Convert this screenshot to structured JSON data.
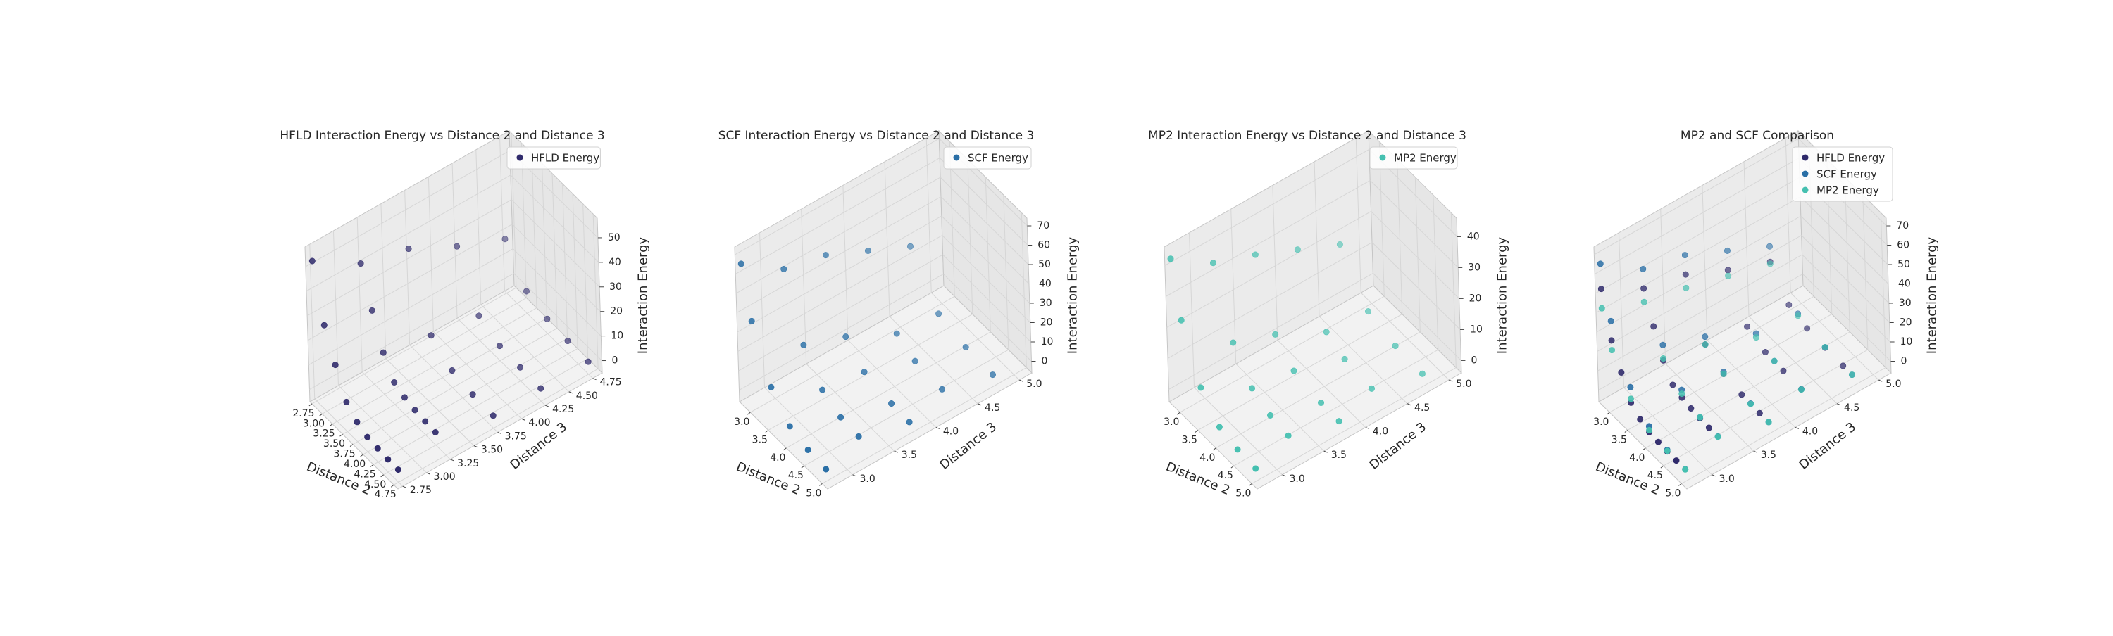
{
  "figure": {
    "background": "#ffffff",
    "pane_colors": [
      "#f2f2f2",
      "#ebebeb",
      "#e6e6e6"
    ],
    "grid_color": "#d6d6d6",
    "edge_color": "#c6c6c6",
    "series_colors": {
      "HFLD Energy": "#2f2a6b",
      "SCF Energy": "#2a6fa6",
      "MP2 Energy": "#45c0b0"
    }
  },
  "chart_data": [
    {
      "type": "scatter",
      "subtype": "3d",
      "title": "HFLD Interaction Energy vs Distance 2 and Distance 3",
      "xlabel": "Distance 2",
      "ylabel": "Distance 3",
      "zlabel": "Interaction Energy",
      "xlim": [
        2.7,
        4.85
      ],
      "ylim": [
        2.7,
        4.85
      ],
      "zlim": [
        -5,
        58
      ],
      "xticks": [
        "2.75",
        "3.00",
        "3.25",
        "3.50",
        "3.75",
        "4.00",
        "4.25",
        "4.50",
        "4.75"
      ],
      "yticks": [
        "2.75",
        "3.00",
        "3.25",
        "3.50",
        "3.75",
        "4.00",
        "4.25",
        "4.50",
        "4.75"
      ],
      "zticks": [
        "0",
        "10",
        "20",
        "30",
        "40",
        "50"
      ],
      "legend": "top-right",
      "grid": true,
      "series": [
        {
          "name": "HFLD Energy",
          "color": "#2f2a6b",
          "points": [
            [
              2.75,
              2.75,
              52
            ],
            [
              3.0,
              2.75,
              30
            ],
            [
              3.25,
              2.75,
              18
            ],
            [
              3.5,
              2.75,
              7
            ],
            [
              3.75,
              2.75,
              3
            ],
            [
              4.0,
              2.75,
              1
            ],
            [
              4.25,
              2.75,
              0.5
            ],
            [
              4.5,
              2.75,
              0.2
            ],
            [
              4.75,
              2.75,
              0.1
            ],
            [
              2.75,
              3.25,
              40
            ],
            [
              3.0,
              3.25,
              25
            ],
            [
              3.25,
              3.25,
              12
            ],
            [
              3.5,
              3.25,
              4
            ],
            [
              3.75,
              3.25,
              2
            ],
            [
              4.0,
              3.25,
              1
            ],
            [
              4.25,
              3.25,
              0.5
            ],
            [
              4.5,
              3.25,
              0.2
            ],
            [
              2.75,
              3.75,
              35
            ],
            [
              3.25,
              3.75,
              8
            ],
            [
              3.75,
              3.75,
              2
            ],
            [
              4.25,
              3.75,
              0.5
            ],
            [
              4.75,
              3.75,
              0.1
            ],
            [
              2.75,
              4.25,
              25
            ],
            [
              3.25,
              4.25,
              5
            ],
            [
              3.75,
              4.25,
              1
            ],
            [
              4.25,
              4.25,
              0.5
            ],
            [
              4.75,
              4.25,
              0.2
            ],
            [
              2.75,
              4.75,
              17
            ],
            [
              3.25,
              4.75,
              4
            ],
            [
              3.75,
              4.75,
              1
            ],
            [
              4.25,
              4.75,
              0.3
            ],
            [
              4.75,
              4.75,
              0.1
            ]
          ]
        }
      ]
    },
    {
      "type": "scatter",
      "subtype": "3d",
      "title": "SCF Interaction Energy vs Distance 2 and Distance 3",
      "xlabel": "Distance 2",
      "ylabel": "Distance 3",
      "zlabel": "Interaction Energy",
      "xlim": [
        2.7,
        5.15
      ],
      "ylim": [
        2.7,
        5.15
      ],
      "zlim": [
        -6,
        74
      ],
      "xticks": [
        "3.0",
        "3.5",
        "4.0",
        "4.5",
        "5.0"
      ],
      "yticks": [
        "3.0",
        "3.5",
        "4.0",
        "4.5",
        "5.0"
      ],
      "zticks": [
        "0",
        "10",
        "20",
        "30",
        "40",
        "50",
        "60",
        "70"
      ],
      "legend": "top-right",
      "grid": true,
      "series": [
        {
          "name": "SCF Energy",
          "color": "#2a6fa6",
          "points": [
            [
              2.75,
              2.75,
              65
            ],
            [
              3.0,
              2.75,
              40
            ],
            [
              3.5,
              2.75,
              15
            ],
            [
              4.0,
              2.75,
              4
            ],
            [
              4.5,
              2.75,
              1
            ],
            [
              5.0,
              2.75,
              0.2
            ],
            [
              2.75,
              3.25,
              50
            ],
            [
              3.25,
              3.25,
              20
            ],
            [
              3.75,
              3.25,
              6
            ],
            [
              4.25,
              3.25,
              1
            ],
            [
              4.75,
              3.25,
              0.3
            ],
            [
              2.75,
              3.75,
              45
            ],
            [
              3.25,
              3.75,
              12
            ],
            [
              3.75,
              3.75,
              3
            ],
            [
              4.5,
              3.75,
              0.5
            ],
            [
              5.0,
              3.75,
              0.1
            ],
            [
              2.75,
              4.25,
              35
            ],
            [
              3.5,
              4.25,
              6
            ],
            [
              4.0,
              4.25,
              1
            ],
            [
              4.75,
              4.25,
              0.2
            ],
            [
              2.75,
              4.75,
              25
            ],
            [
              3.5,
              4.75,
              4
            ],
            [
              4.25,
              4.75,
              0.5
            ],
            [
              5.0,
              4.75,
              0.1
            ]
          ]
        }
      ]
    },
    {
      "type": "scatter",
      "subtype": "3d",
      "title": "MP2 Interaction Energy vs Distance 2 and Distance 3",
      "xlabel": "Distance 2",
      "ylabel": "Distance 3",
      "zlabel": "Interaction Energy",
      "xlim": [
        2.7,
        5.15
      ],
      "ylim": [
        2.7,
        5.15
      ],
      "zlim": [
        -4,
        46
      ],
      "xticks": [
        "3.0",
        "3.5",
        "4.0",
        "4.5",
        "5.0"
      ],
      "yticks": [
        "3.0",
        "3.5",
        "4.0",
        "4.5",
        "5.0"
      ],
      "zticks": [
        "0",
        "10",
        "20",
        "30",
        "40"
      ],
      "legend": "top-right",
      "grid": true,
      "series": [
        {
          "name": "MP2 Energy",
          "color": "#45c0b0",
          "points": [
            [
              2.75,
              2.75,
              42
            ],
            [
              3.0,
              2.75,
              25
            ],
            [
              3.5,
              2.75,
              9
            ],
            [
              4.0,
              2.75,
              2
            ],
            [
              4.5,
              2.75,
              0.5
            ],
            [
              5.0,
              2.75,
              0.1
            ],
            [
              2.75,
              3.25,
              33
            ],
            [
              3.25,
              3.25,
              13
            ],
            [
              3.75,
              3.25,
              4
            ],
            [
              4.25,
              3.25,
              1
            ],
            [
              4.75,
              3.25,
              0.2
            ],
            [
              2.75,
              3.75,
              28
            ],
            [
              3.25,
              3.75,
              8
            ],
            [
              3.75,
              3.75,
              2
            ],
            [
              4.5,
              3.75,
              0.3
            ],
            [
              5.0,
              3.75,
              0.1
            ],
            [
              2.75,
              4.25,
              22
            ],
            [
              3.5,
              4.25,
              4
            ],
            [
              4.0,
              4.25,
              1
            ],
            [
              4.75,
              4.25,
              0.1
            ],
            [
              2.75,
              4.75,
              16
            ],
            [
              3.5,
              4.75,
              3
            ],
            [
              4.25,
              4.75,
              0.5
            ],
            [
              5.0,
              4.75,
              0.1
            ]
          ]
        }
      ]
    },
    {
      "type": "scatter",
      "subtype": "3d",
      "title": "MP2 and SCF Comparison",
      "xlabel": "Distance 2",
      "ylabel": "Distance 3",
      "zlabel": "Interaction Energy",
      "xlim": [
        2.7,
        5.15
      ],
      "ylim": [
        2.7,
        5.15
      ],
      "zlim": [
        -6,
        74
      ],
      "xticks": [
        "3.0",
        "3.5",
        "4.0",
        "4.5",
        "5.0"
      ],
      "yticks": [
        "3.0",
        "3.5",
        "4.0",
        "4.5",
        "5.0"
      ],
      "zticks": [
        "0",
        "10",
        "20",
        "30",
        "40",
        "50",
        "60",
        "70"
      ],
      "legend": "top-right",
      "grid": true,
      "series": [
        {
          "name": "HFLD Energy",
          "color": "#2f2a6b",
          "points": [
            [
              2.75,
              2.75,
              52
            ],
            [
              3.0,
              2.75,
              30
            ],
            [
              3.25,
              2.75,
              18
            ],
            [
              3.5,
              2.75,
              7
            ],
            [
              3.75,
              2.75,
              3
            ],
            [
              4.0,
              2.75,
              1
            ],
            [
              4.25,
              2.75,
              0.5
            ],
            [
              4.5,
              2.75,
              0.2
            ],
            [
              4.75,
              2.75,
              0.1
            ],
            [
              2.75,
              3.25,
              40
            ],
            [
              3.0,
              3.25,
              25
            ],
            [
              3.25,
              3.25,
              12
            ],
            [
              3.5,
              3.25,
              4
            ],
            [
              3.75,
              3.25,
              2
            ],
            [
              4.0,
              3.25,
              1
            ],
            [
              4.25,
              3.25,
              0.5
            ],
            [
              4.5,
              3.25,
              0.2
            ],
            [
              2.75,
              3.75,
              35
            ],
            [
              3.25,
              3.75,
              8
            ],
            [
              3.75,
              3.75,
              2
            ],
            [
              4.25,
              3.75,
              0.5
            ],
            [
              4.75,
              3.75,
              0.1
            ],
            [
              2.75,
              4.25,
              25
            ],
            [
              3.25,
              4.25,
              5
            ],
            [
              3.75,
              4.25,
              1
            ],
            [
              4.25,
              4.25,
              0.5
            ],
            [
              4.75,
              4.25,
              0.2
            ],
            [
              2.75,
              4.75,
              17
            ],
            [
              3.25,
              4.75,
              4
            ],
            [
              3.75,
              4.75,
              1
            ],
            [
              4.25,
              4.75,
              0.3
            ],
            [
              4.75,
              4.75,
              0.1
            ]
          ]
        },
        {
          "name": "SCF Energy",
          "color": "#2a6fa6",
          "points": [
            [
              2.75,
              2.75,
              65
            ],
            [
              3.0,
              2.75,
              40
            ],
            [
              3.5,
              2.75,
              15
            ],
            [
              4.0,
              2.75,
              4
            ],
            [
              4.5,
              2.75,
              1
            ],
            [
              5.0,
              2.75,
              0.2
            ],
            [
              2.75,
              3.25,
              50
            ],
            [
              3.25,
              3.25,
              20
            ],
            [
              3.75,
              3.25,
              6
            ],
            [
              4.25,
              3.25,
              1
            ],
            [
              4.75,
              3.25,
              0.3
            ],
            [
              2.75,
              3.75,
              45
            ],
            [
              3.25,
              3.75,
              12
            ],
            [
              3.75,
              3.75,
              3
            ],
            [
              4.5,
              3.75,
              0.5
            ],
            [
              5.0,
              3.75,
              0.1
            ],
            [
              2.75,
              4.25,
              35
            ],
            [
              3.5,
              4.25,
              6
            ],
            [
              4.0,
              4.25,
              1
            ],
            [
              4.75,
              4.25,
              0.2
            ],
            [
              2.75,
              4.75,
              25
            ],
            [
              3.5,
              4.75,
              4
            ],
            [
              4.25,
              4.75,
              0.5
            ],
            [
              5.0,
              4.75,
              0.1
            ]
          ]
        },
        {
          "name": "MP2 Energy",
          "color": "#45c0b0",
          "points": [
            [
              2.75,
              2.75,
              42
            ],
            [
              3.0,
              2.75,
              25
            ],
            [
              3.5,
              2.75,
              9
            ],
            [
              4.0,
              2.75,
              2
            ],
            [
              4.5,
              2.75,
              0.5
            ],
            [
              5.0,
              2.75,
              0.1
            ],
            [
              2.75,
              3.25,
              33
            ],
            [
              3.25,
              3.25,
              13
            ],
            [
              3.75,
              3.25,
              4
            ],
            [
              4.25,
              3.25,
              1
            ],
            [
              4.75,
              3.25,
              0.2
            ],
            [
              2.75,
              3.75,
              28
            ],
            [
              3.25,
              3.75,
              8
            ],
            [
              3.75,
              3.75,
              2
            ],
            [
              4.5,
              3.75,
              0.3
            ],
            [
              5.0,
              3.75,
              0.1
            ],
            [
              2.75,
              4.25,
              22
            ],
            [
              3.5,
              4.25,
              4
            ],
            [
              4.0,
              4.25,
              1
            ],
            [
              4.75,
              4.25,
              0.1
            ],
            [
              2.75,
              4.75,
              16
            ],
            [
              3.5,
              4.75,
              3
            ],
            [
              4.25,
              4.75,
              0.5
            ],
            [
              5.0,
              4.75,
              0.1
            ]
          ]
        }
      ]
    }
  ]
}
